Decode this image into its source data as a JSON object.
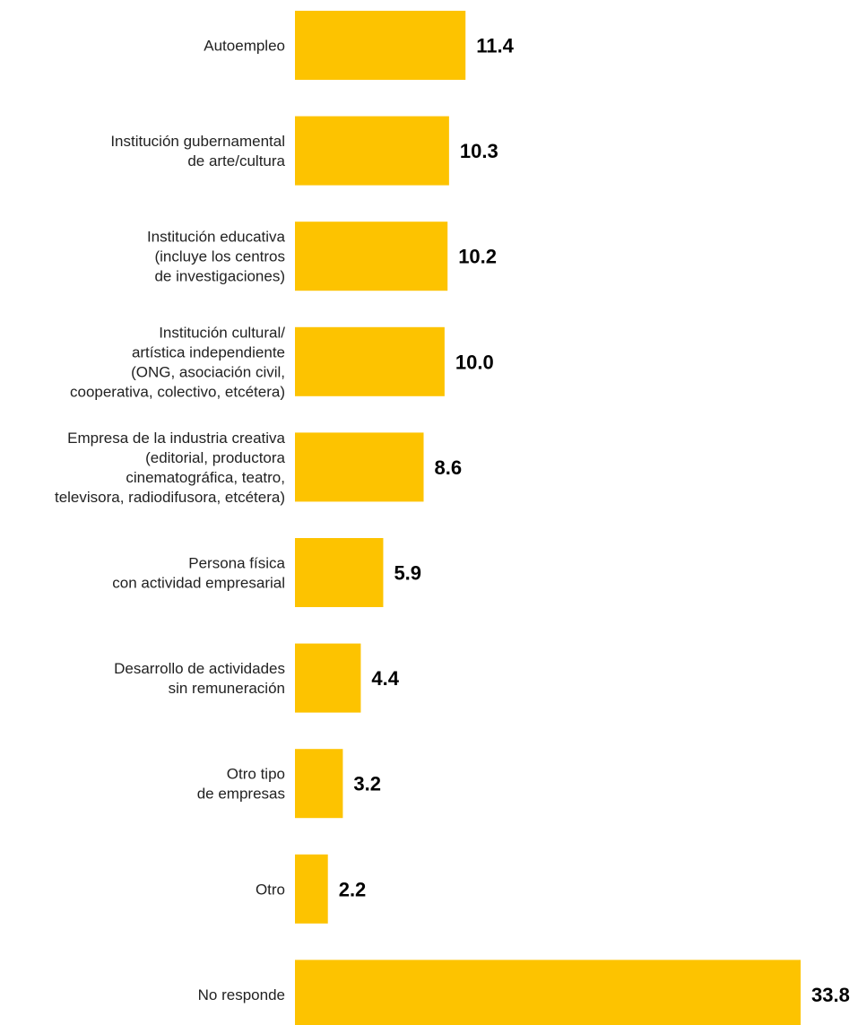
{
  "chart_data": {
    "type": "bar",
    "orientation": "horizontal",
    "title": "",
    "xlabel": "",
    "ylabel": "",
    "categories": [
      [
        "Autoempleo"
      ],
      [
        "Institución gubernamental",
        "de arte/cultura"
      ],
      [
        "Institución educativa",
        "(incluye los centros",
        "de investigaciones)"
      ],
      [
        "Institución cultural/",
        "artística independiente",
        "(ONG, asociación civil,",
        "cooperativa, colectivo, etcétera)"
      ],
      [
        "Empresa de la industria creativa",
        "(editorial, productora",
        "cinematográfica, teatro,",
        "televisora, radiodifusora, etcétera)"
      ],
      [
        "Persona física",
        "con actividad empresarial"
      ],
      [
        "Desarrollo de actividades",
        "sin remuneración"
      ],
      [
        "Otro tipo",
        "de empresas"
      ],
      [
        "Otro"
      ],
      [
        "No responde"
      ]
    ],
    "values": [
      11.4,
      10.3,
      10.2,
      10.0,
      8.6,
      5.9,
      4.4,
      3.2,
      2.2,
      33.8
    ],
    "value_labels": [
      "11.4",
      "10.3",
      "10.2",
      "10.0",
      "8.6",
      "5.9",
      "4.4",
      "3.2",
      "2.2",
      "33.8"
    ],
    "xlim": [
      0,
      33.8
    ],
    "grid": false,
    "bar_color": "#FDC300"
  }
}
